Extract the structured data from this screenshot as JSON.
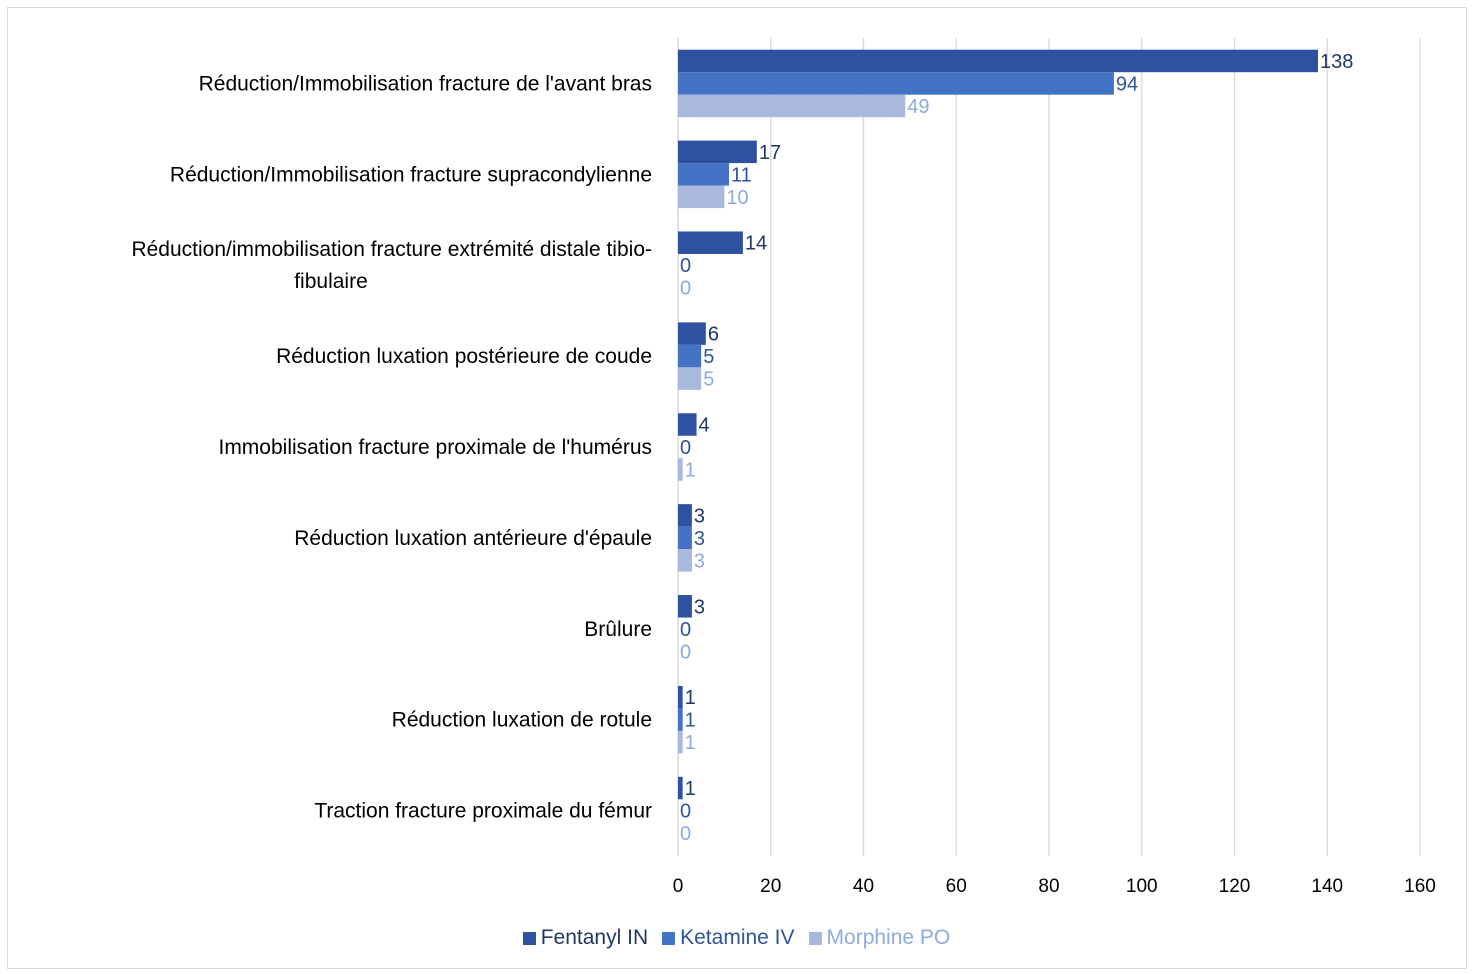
{
  "chart_data": {
    "type": "bar",
    "orientation": "horizontal",
    "categories": [
      "Réduction/Immobilisation fracture de l'avant bras",
      "Réduction/Immobilisation fracture supracondylienne",
      "Réduction/immobilisation fracture extrémité distale tibio-fibulaire",
      "Réduction luxation postérieure de coude",
      "Immobilisation fracture proximale de l'humérus",
      "Réduction luxation antérieure d'épaule",
      "Brûlure",
      "Réduction luxation de rotule",
      "Traction fracture proximale du fémur"
    ],
    "category_label_lines": [
      [
        "Réduction/Immobilisation fracture de l'avant bras"
      ],
      [
        "Réduction/Immobilisation fracture supracondylienne"
      ],
      [
        "Réduction/immobilisation fracture extrémité distale tibio-",
        "fibulaire"
      ],
      [
        "Réduction luxation postérieure de coude"
      ],
      [
        "Immobilisation fracture proximale de l'humérus"
      ],
      [
        "Réduction luxation antérieure d'épaule"
      ],
      [
        "Brûlure"
      ],
      [
        "Réduction luxation de rotule"
      ],
      [
        "Traction fracture proximale du fémur"
      ]
    ],
    "series": [
      {
        "name": "Fentanyl IN",
        "color": "#2f52a0",
        "label_color": "#203864",
        "values": [
          138,
          17,
          14,
          6,
          4,
          3,
          3,
          1,
          1
        ]
      },
      {
        "name": "Ketamine IV",
        "color": "#4472c4",
        "label_color": "#2f5597",
        "values": [
          94,
          11,
          0,
          5,
          0,
          3,
          0,
          1,
          0
        ]
      },
      {
        "name": "Morphine PO",
        "color": "#a9b8df",
        "label_color": "#8faadc",
        "values": [
          49,
          10,
          0,
          5,
          1,
          3,
          0,
          1,
          0
        ]
      }
    ],
    "xlim": [
      0,
      160
    ],
    "xticks": [
      0,
      20,
      40,
      60,
      80,
      100,
      120,
      140,
      160
    ],
    "grid": true,
    "legend_position": "bottom",
    "data_labels": true
  }
}
